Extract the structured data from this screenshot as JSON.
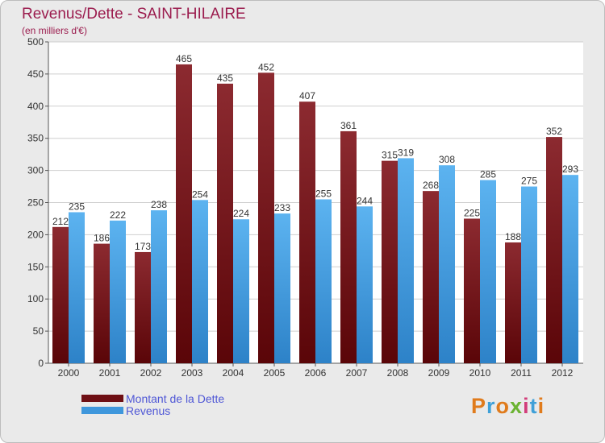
{
  "header": {
    "title": "Revenus/Dette - SAINT-HILAIRE",
    "subtitle": "(en milliers d'€)"
  },
  "legend": {
    "items": [
      {
        "label": "Montant de la Dette",
        "color": "#6e0f14"
      },
      {
        "label": "Revenus",
        "color": "#3f97dc"
      }
    ]
  },
  "logo": {
    "letters": [
      "P",
      "r",
      "o",
      "x",
      "i",
      "t",
      "i"
    ],
    "colors": [
      "#e07b1c",
      "#3fa0d8",
      "#e07b1c",
      "#6bb332",
      "#d23c7a",
      "#3fa0d8",
      "#e07b1c"
    ]
  },
  "chart_data": {
    "type": "bar",
    "categories": [
      "2000",
      "2001",
      "2002",
      "2003",
      "2004",
      "2005",
      "2006",
      "2007",
      "2008",
      "2009",
      "2010",
      "2011",
      "2012"
    ],
    "series": [
      {
        "name": "Montant de la Dette",
        "values": [
          212,
          186,
          173,
          465,
          435,
          452,
          407,
          361,
          315,
          268,
          225,
          188,
          352
        ],
        "color": "#7a1a1f"
      },
      {
        "name": "Revenus",
        "values": [
          235,
          222,
          238,
          254,
          224,
          233,
          255,
          244,
          319,
          308,
          285,
          275,
          293
        ],
        "color": "#4aa3e4"
      }
    ],
    "yticks": [
      0,
      50,
      100,
      150,
      200,
      250,
      300,
      350,
      400,
      450,
      500
    ],
    "ylim": [
      0,
      500
    ],
    "grid": true,
    "legend_position": "bottom-left"
  }
}
